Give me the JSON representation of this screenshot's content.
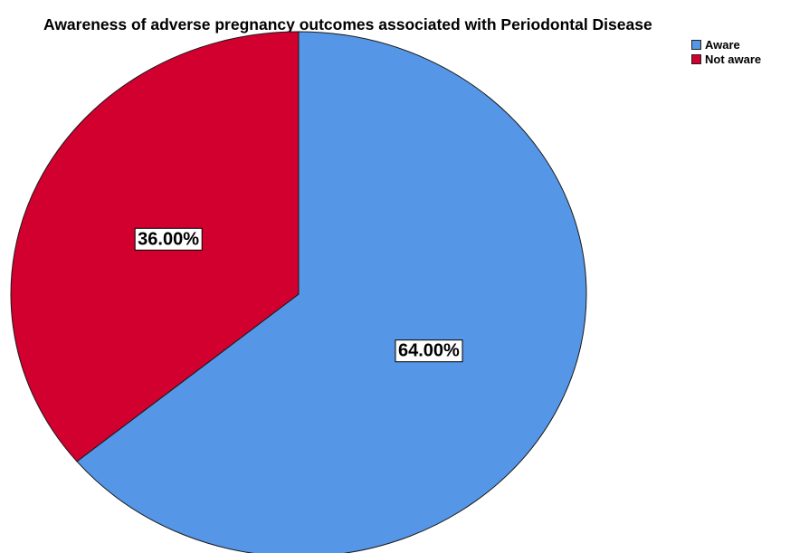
{
  "chart_data": {
    "type": "pie",
    "title": "Awareness of adverse pregnancy outcomes associated with Periodontal Disease",
    "slices": [
      {
        "label": "Aware",
        "value": 64.0,
        "display": "64.00%",
        "color": "#5596e6"
      },
      {
        "label": "Not aware",
        "value": 36.0,
        "display": "36.00%",
        "color": "#d1002f"
      }
    ],
    "legend_position": "top-right",
    "start_angle_deg": 0,
    "direction": "clockwise"
  }
}
